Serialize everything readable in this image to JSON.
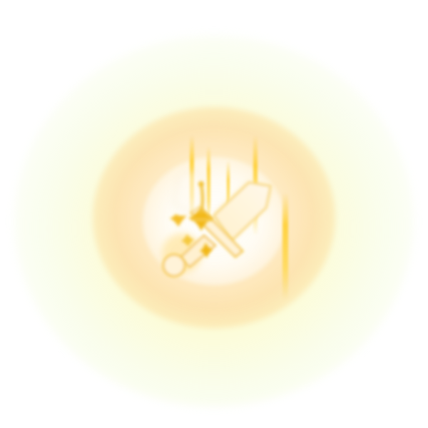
{
  "scene": {
    "subject_icon": "sword-icon",
    "effect_icon": "sparkle-icon",
    "colors": {
      "background": "#ffffff",
      "glow_outer": "#f4f8c8",
      "glow_mid": "#fbe3b2",
      "glow_core": "#fffaf2",
      "ray": "#ffd23a",
      "sword_fill": "#fff3d6",
      "sword_edge": "#f5c842"
    }
  }
}
